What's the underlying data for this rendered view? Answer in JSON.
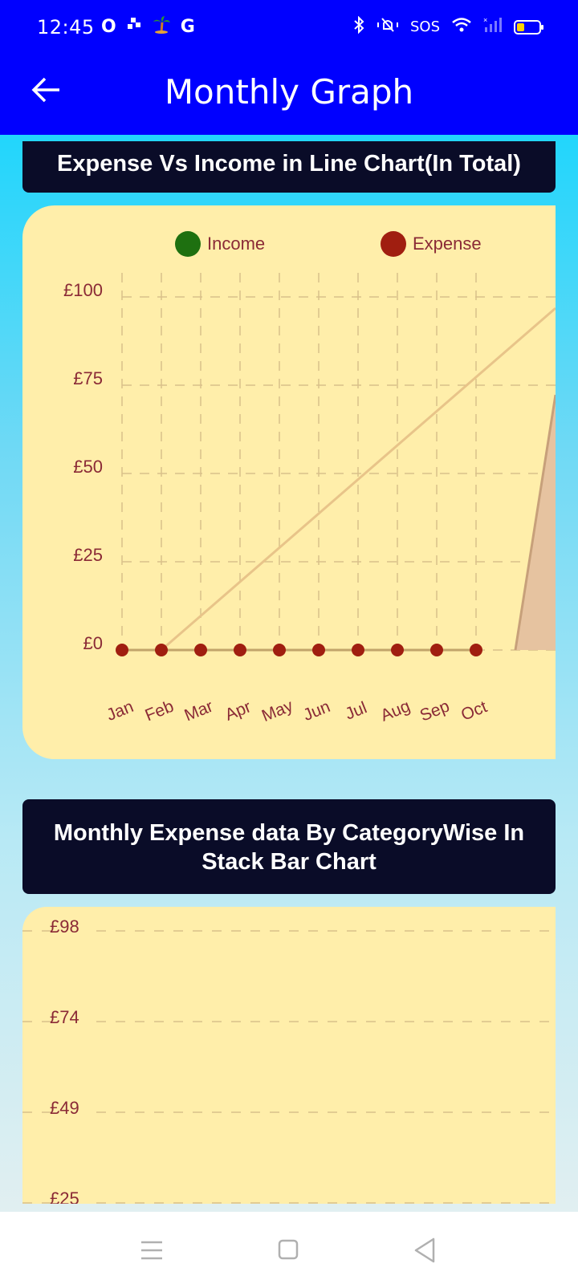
{
  "status": {
    "time": "12:45",
    "left_icons": [
      "O",
      "G"
    ],
    "sos": "SOS"
  },
  "appbar": {
    "title": "Monthly Graph",
    "back_icon": "arrow-left-icon"
  },
  "chart1": {
    "title": "Expense Vs Income in Line Chart(In Total)"
  },
  "chart2": {
    "title": "Monthly Expense data By CategoryWise In Stack Bar Chart"
  },
  "colors": {
    "income": "#1e7010",
    "expense": "#a01e10",
    "panel": "#ffeeaa",
    "label": "#8a2a36"
  },
  "chart_data": [
    {
      "type": "line",
      "title": "Expense Vs Income in Line Chart(In Total)",
      "categories": [
        "Jan",
        "Feb",
        "Mar",
        "Apr",
        "May",
        "Jun",
        "Jul",
        "Aug",
        "Sep",
        "Oct"
      ],
      "yticks": [
        "£0",
        "£25",
        "£50",
        "£75",
        "£100"
      ],
      "ylim": [
        0,
        100
      ],
      "legend_position": "top",
      "grid": true,
      "series": [
        {
          "name": "Income",
          "values": [
            0,
            0,
            0,
            0,
            0,
            0,
            0,
            0,
            0,
            0
          ]
        },
        {
          "name": "Expense",
          "values": [
            0,
            0,
            0,
            0,
            0,
            0,
            0,
            0,
            0,
            0
          ]
        }
      ]
    },
    {
      "type": "bar",
      "title": "Monthly Expense data By CategoryWise In Stack Bar Chart",
      "yticks": [
        "£98",
        "£74",
        "£49",
        "£25"
      ],
      "grid": true
    }
  ],
  "navbar": {
    "icons": [
      "menu-icon",
      "home-icon",
      "back-triangle-icon"
    ]
  }
}
